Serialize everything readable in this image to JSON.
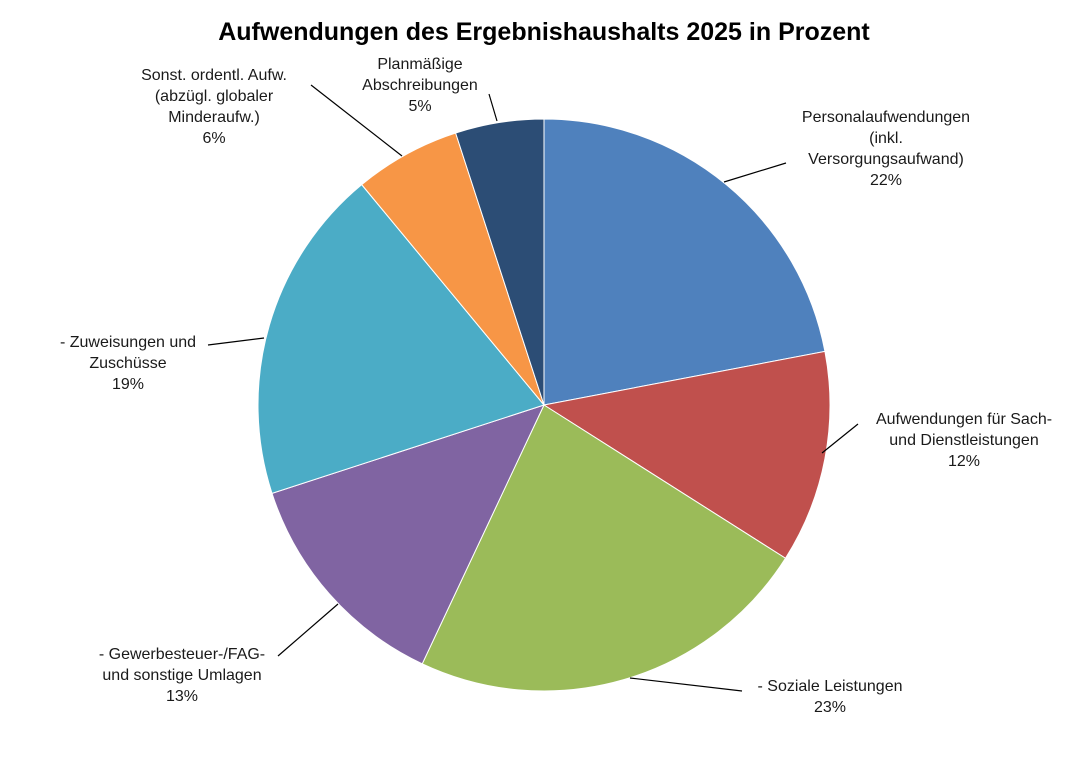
{
  "chart_data": {
    "type": "pie",
    "title": "Aufwendungen des Ergebnishaushalts 2025 in Prozent",
    "slices": [
      {
        "lines": [
          "Personalaufwendungen",
          "(inkl.",
          "Versorgungsaufwand)"
        ],
        "value": 22,
        "value_label": "22%",
        "color": "#4F81BD"
      },
      {
        "lines": [
          "Aufwendungen für Sach-",
          "und Dienstleistungen"
        ],
        "value": 12,
        "value_label": "12%",
        "color": "#C0504D"
      },
      {
        "lines": [
          "- Soziale Leistungen"
        ],
        "value": 23,
        "value_label": "23%",
        "color": "#9BBB59"
      },
      {
        "lines": [
          "- Gewerbesteuer-/FAG-",
          "und sonstige Umlagen"
        ],
        "value": 13,
        "value_label": "13%",
        "color": "#8064A2"
      },
      {
        "lines": [
          "- Zuweisungen und",
          "Zuschüsse"
        ],
        "value": 19,
        "value_label": "19%",
        "color": "#4BACC6"
      },
      {
        "lines": [
          "Sonst. ordentl. Aufw.",
          "(abzügl. globaler",
          "Minderaufw.)"
        ],
        "value": 6,
        "value_label": "6%",
        "color": "#F79646"
      },
      {
        "lines": [
          "Planmäßige",
          "Abschreibungen"
        ],
        "value": 5,
        "value_label": "5%",
        "color": "#2C4D75"
      }
    ]
  }
}
